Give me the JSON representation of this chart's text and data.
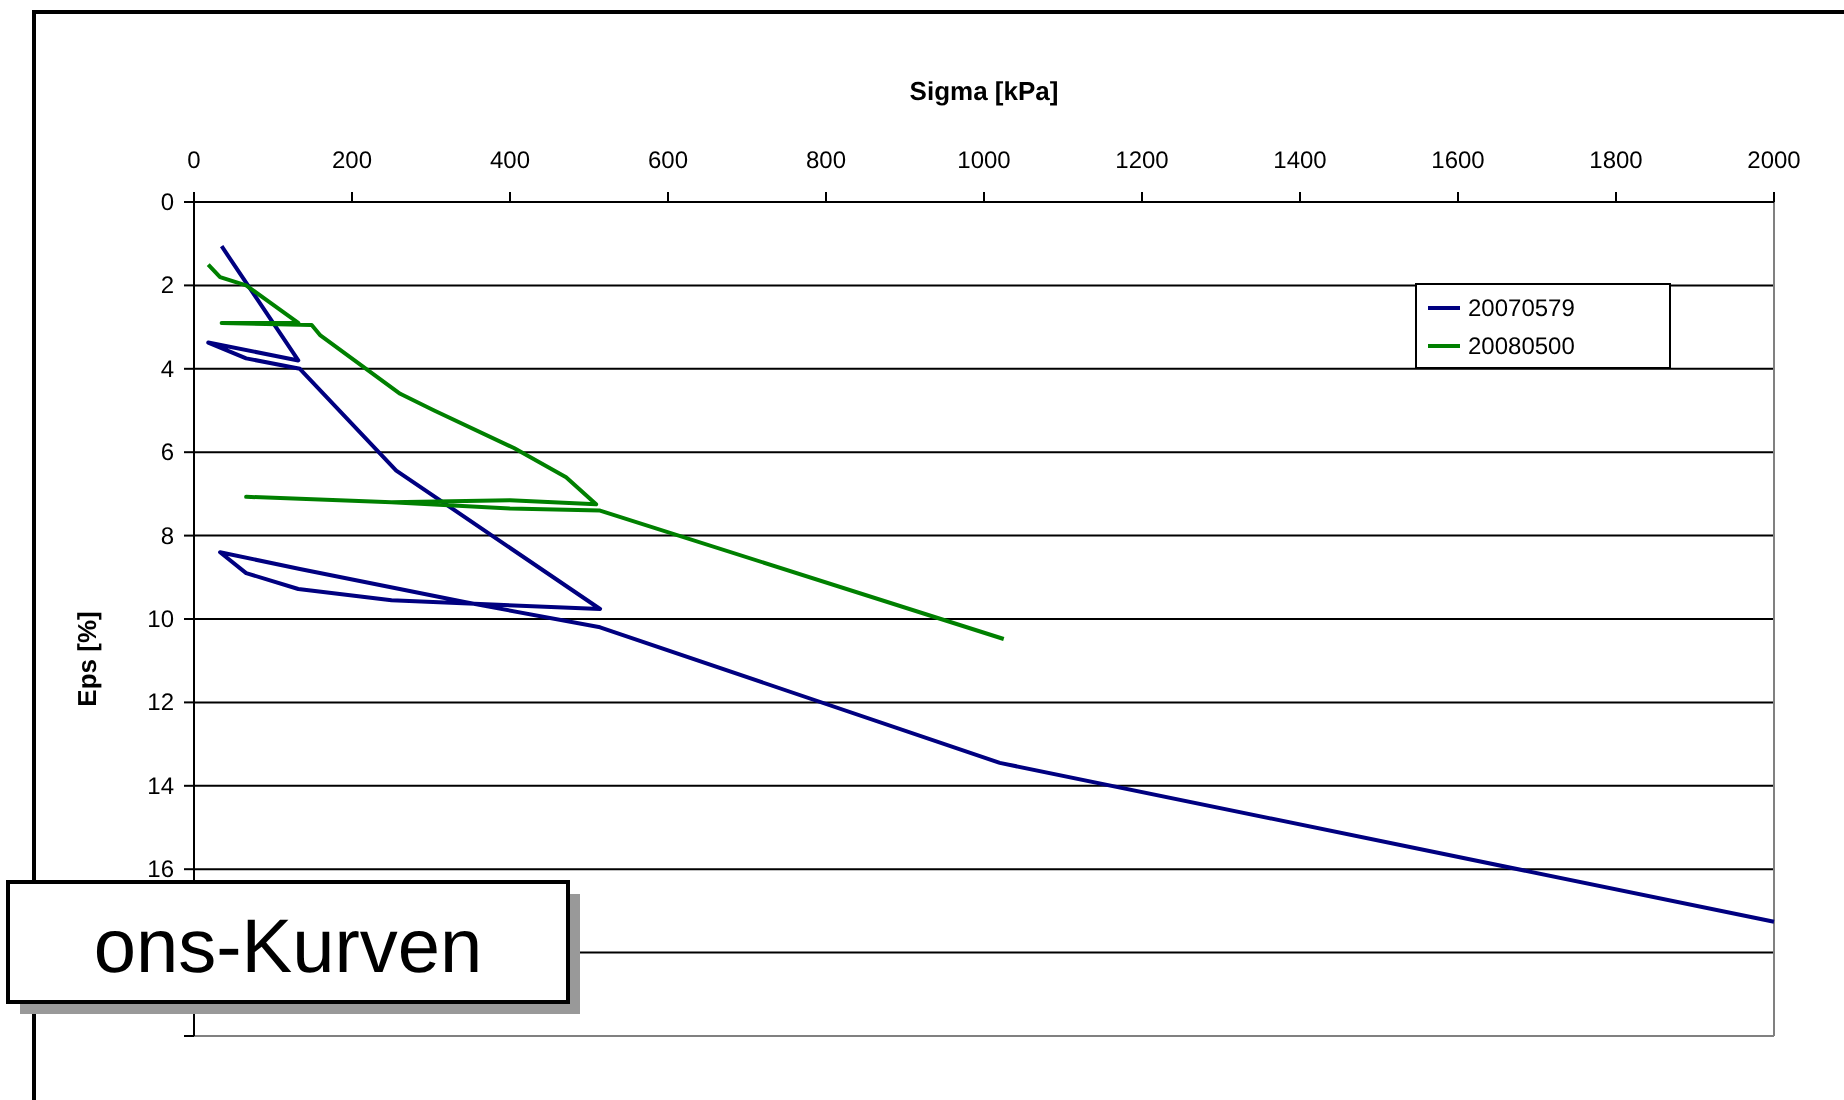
{
  "chart_data": {
    "type": "line",
    "xlabel": "Sigma [kPa]",
    "ylabel": "Eps [%]",
    "xlim": [
      0,
      2000
    ],
    "xticks": [
      0,
      200,
      400,
      600,
      800,
      1000,
      1200,
      1400,
      1600,
      1800,
      2000
    ],
    "ylim": [
      20,
      0
    ],
    "yticks": [
      0,
      2,
      4,
      6,
      8,
      10,
      12,
      14,
      16,
      {
        "value": 18,
        "label": null
      },
      {
        "value": 20,
        "label": null
      }
    ],
    "grid": "y",
    "legend": "top right",
    "marker": "none",
    "line_style": "solid",
    "annotations": [
      "ons-Kurven"
    ],
    "series": [
      {
        "name": "20070579",
        "color": "#000080",
        "x": [
          35,
          132,
          18,
          66,
          134,
          256,
          514,
          250,
          132,
          66,
          33,
          134,
          344,
          514,
          1020,
          2000
        ],
        "values": [
          1.06,
          3.8,
          3.37,
          3.75,
          4.0,
          6.44,
          9.76,
          9.55,
          9.28,
          8.9,
          8.4,
          8.8,
          9.6,
          10.2,
          13.45,
          17.26
        ]
      },
      {
        "name": "20080500",
        "color": "#008000",
        "x": [
          18,
          33,
          66,
          132,
          35,
          149,
          160,
          261,
          304,
          405,
          471,
          509,
          400,
          250,
          66,
          250,
          400,
          514,
          1025
        ],
        "values": [
          1.5,
          1.8,
          2.0,
          2.9,
          2.9,
          2.95,
          3.2,
          4.6,
          5.0,
          5.9,
          6.6,
          7.25,
          7.15,
          7.2,
          7.07,
          7.2,
          7.35,
          7.4,
          10.48
        ]
      }
    ]
  }
}
